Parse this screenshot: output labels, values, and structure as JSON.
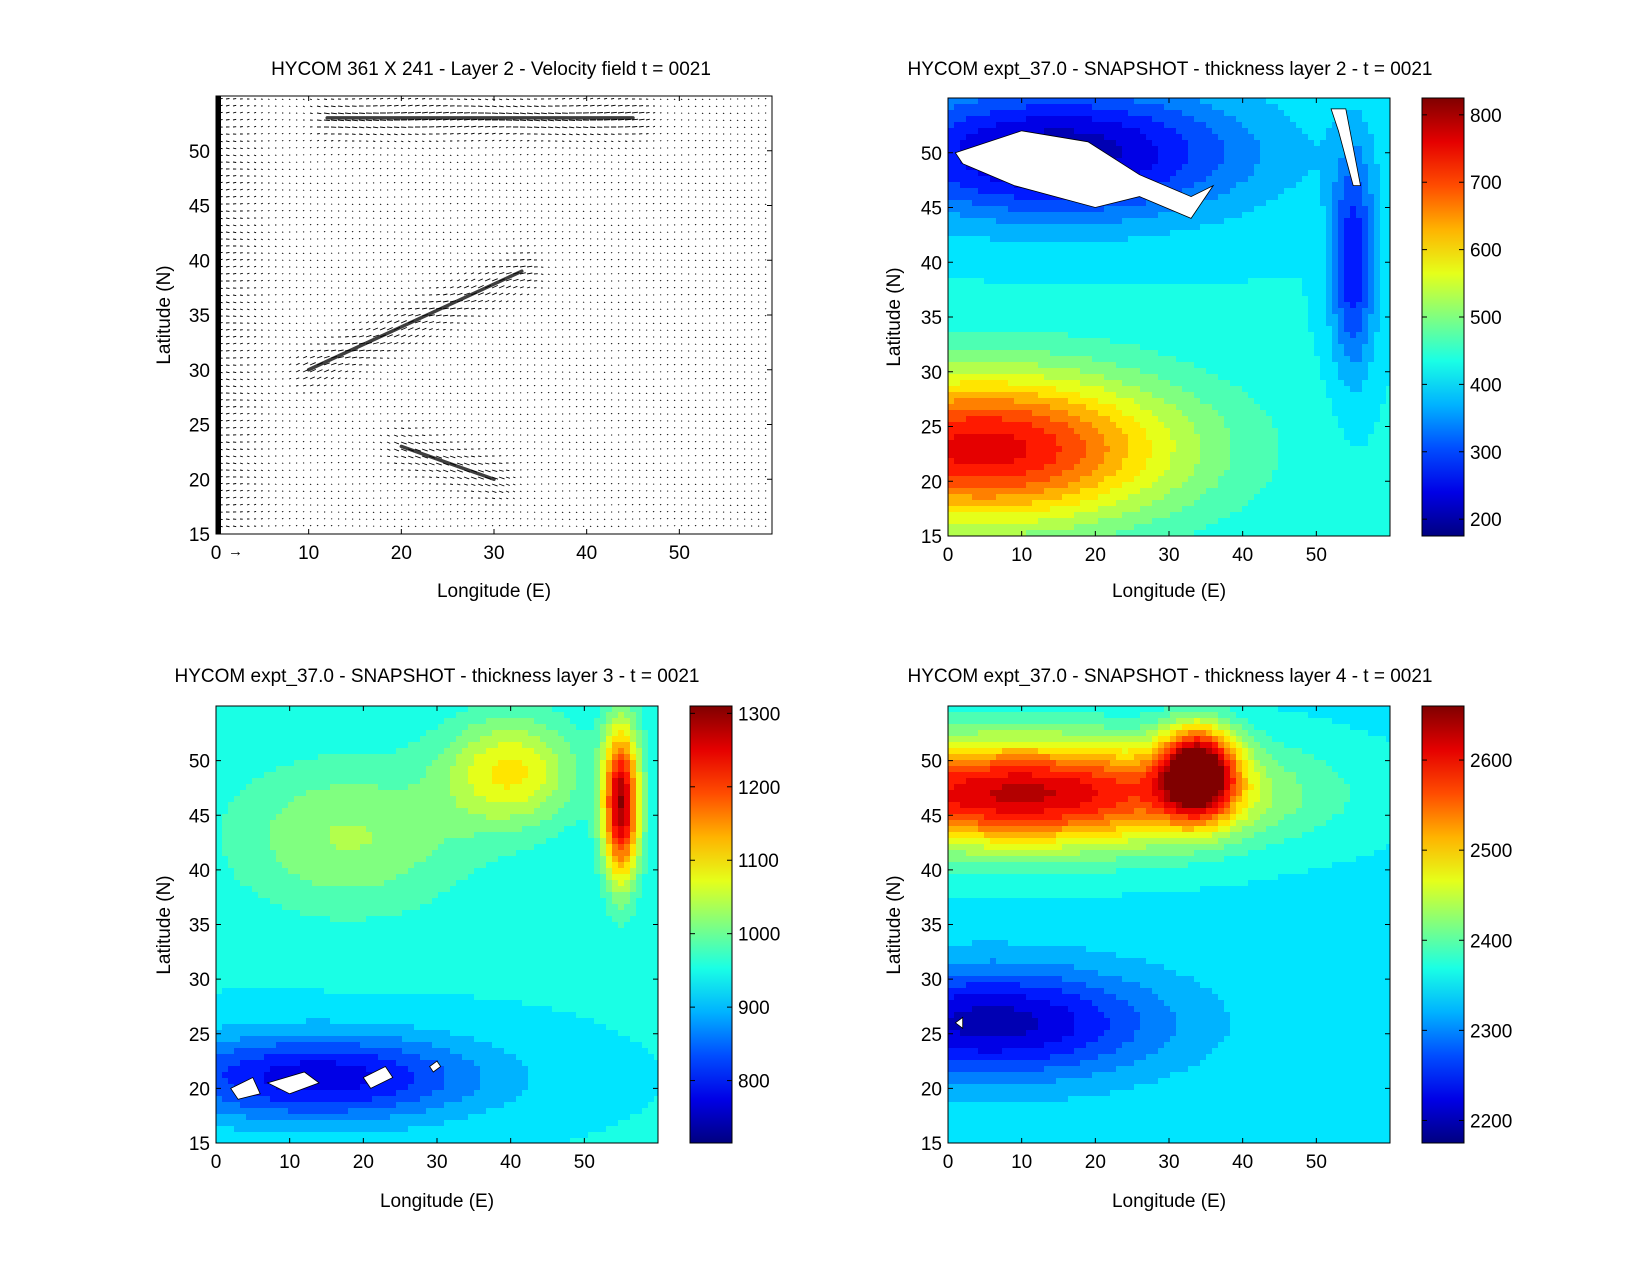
{
  "figure": {
    "colors": {
      "background": "#ffffff",
      "axis": "#000000",
      "land_mask": "#ffffff"
    },
    "colormap": "jet"
  },
  "chart_data": [
    {
      "type": "quiver",
      "title": "HYCOM 361 X 241 - Layer 2 - Velocity field  t = 0021",
      "xlabel": "Longitude (E)",
      "ylabel": "Latitude (N)",
      "xlim": [
        0,
        60
      ],
      "ylim": [
        15,
        55
      ],
      "xticks": [
        0,
        10,
        20,
        30,
        40,
        50
      ],
      "yticks": [
        15,
        20,
        25,
        30,
        35,
        40,
        45,
        50
      ],
      "grid": "361 X 241",
      "layer": 2,
      "time": "0021",
      "reference_arrow": "0→",
      "jets": [
        {
          "from": [
            10,
            30
          ],
          "to": [
            33,
            39
          ]
        },
        {
          "from": [
            20,
            23
          ],
          "to": [
            30,
            20
          ]
        },
        {
          "from": [
            12,
            53
          ],
          "to": [
            45,
            53
          ]
        }
      ]
    },
    {
      "type": "heatmap",
      "title": "HYCOM expt_37.0 - SNAPSHOT - thickness layer 2 - t = 0021",
      "xlabel": "Longitude (E)",
      "ylabel": "Latitude (N)",
      "xlim": [
        0,
        60
      ],
      "ylim": [
        15,
        55
      ],
      "xticks": [
        0,
        10,
        20,
        30,
        40,
        50
      ],
      "yticks": [
        15,
        20,
        25,
        30,
        35,
        40,
        45,
        50
      ],
      "colorbar": {
        "range": [
          175,
          825
        ],
        "ticks": [
          200,
          300,
          400,
          500,
          600,
          700,
          800
        ]
      },
      "features": [
        {
          "kind": "max",
          "lon": 5,
          "lat": 23,
          "value": 760,
          "sx": 26,
          "sy": 7
        },
        {
          "kind": "min",
          "lon": 15,
          "lat": 50,
          "value": 200,
          "sx": 25,
          "sy": 6
        },
        {
          "kind": "min",
          "lon": 55,
          "lat": 40,
          "value": 260,
          "sx": 3,
          "sy": 10
        }
      ],
      "background": 420,
      "dry_regions": [
        [
          [
            1,
            50
          ],
          [
            10,
            52
          ],
          [
            19,
            51
          ],
          [
            26,
            48
          ],
          [
            33,
            46
          ],
          [
            36,
            47
          ],
          [
            33,
            44
          ],
          [
            26,
            46
          ],
          [
            20,
            45
          ],
          [
            9,
            47
          ],
          [
            2,
            49
          ]
        ],
        [
          [
            52,
            54
          ],
          [
            54,
            54
          ],
          [
            56,
            47
          ],
          [
            55,
            47
          ],
          [
            53,
            52
          ]
        ]
      ]
    },
    {
      "type": "heatmap",
      "title": "HYCOM expt_37.0 - SNAPSHOT - thickness layer 3 - t = 0021",
      "xlabel": "Longitude (E)",
      "ylabel": "Latitude (N)",
      "xlim": [
        0,
        60
      ],
      "ylim": [
        15,
        55
      ],
      "xticks": [
        0,
        10,
        20,
        30,
        40,
        50
      ],
      "yticks": [
        15,
        20,
        25,
        30,
        35,
        40,
        45,
        50
      ],
      "colorbar": {
        "range": [
          715,
          1310
        ],
        "ticks": [
          800,
          900,
          1000,
          1100,
          1200,
          1300
        ]
      },
      "features": [
        {
          "kind": "max",
          "lon": 55,
          "lat": 46,
          "value": 1290,
          "sx": 2.5,
          "sy": 7
        },
        {
          "kind": "max",
          "lon": 40,
          "lat": 49,
          "value": 1090,
          "sx": 9,
          "sy": 5
        },
        {
          "kind": "min",
          "lon": 14,
          "lat": 21,
          "value": 770,
          "sx": 22,
          "sy": 4
        },
        {
          "kind": "max",
          "lon": 18,
          "lat": 43,
          "value": 1030,
          "sx": 16,
          "sy": 7
        }
      ],
      "background": 940,
      "dry_regions": [
        [
          [
            2,
            20
          ],
          [
            5,
            21
          ],
          [
            6,
            19.5
          ],
          [
            3,
            19
          ]
        ],
        [
          [
            7,
            20.5
          ],
          [
            12,
            21.5
          ],
          [
            14,
            20.5
          ],
          [
            10,
            19.5
          ]
        ],
        [
          [
            20,
            21
          ],
          [
            23,
            22
          ],
          [
            24,
            21
          ],
          [
            21,
            20
          ]
        ],
        [
          [
            29,
            22
          ],
          [
            30,
            22.5
          ],
          [
            30.5,
            22
          ],
          [
            29.5,
            21.5
          ]
        ]
      ]
    },
    {
      "type": "heatmap",
      "title": "HYCOM expt_37.0 - SNAPSHOT - thickness layer 4 - t = 0021",
      "xlabel": "Longitude (E)",
      "ylabel": "Latitude (N)",
      "xlim": [
        0,
        60
      ],
      "ylim": [
        15,
        55
      ],
      "xticks": [
        0,
        10,
        20,
        30,
        40,
        50
      ],
      "yticks": [
        15,
        20,
        25,
        30,
        35,
        40,
        45,
        50
      ],
      "colorbar": {
        "range": [
          2175,
          2660
        ],
        "ticks": [
          2200,
          2300,
          2400,
          2500,
          2600
        ]
      },
      "features": [
        {
          "kind": "max",
          "lon": 10,
          "lat": 47,
          "value": 2630,
          "sx": 30,
          "sy": 5
        },
        {
          "kind": "max",
          "lon": 34,
          "lat": 49,
          "value": 2650,
          "sx": 5,
          "sy": 4
        },
        {
          "kind": "min",
          "lon": 6,
          "lat": 26,
          "value": 2200,
          "sx": 22,
          "sy": 5
        }
      ],
      "background": 2350,
      "dry_regions": [
        [
          [
            1,
            26
          ],
          [
            2,
            26.5
          ],
          [
            2,
            25.5
          ]
        ]
      ]
    }
  ]
}
